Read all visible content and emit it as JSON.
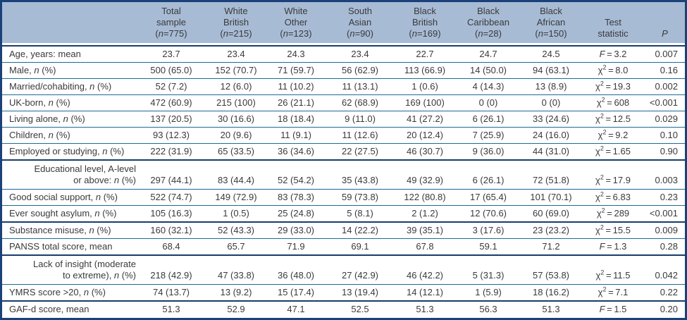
{
  "colors": {
    "header_bg": "#a7bbd5",
    "outer_border": "#1a4178",
    "rule_thin": "#1e6995",
    "rule_thick": "#173c6b",
    "text": "#3a3a3a"
  },
  "table": {
    "columns": [
      {
        "lines": [
          "Total",
          "sample",
          "(n=775)"
        ]
      },
      {
        "lines": [
          "White",
          "British",
          "(n=215)"
        ]
      },
      {
        "lines": [
          "White",
          "Other",
          "(n=123)"
        ]
      },
      {
        "lines": [
          "South",
          "Asian",
          "(n=90)"
        ]
      },
      {
        "lines": [
          "Black",
          "British",
          "(n=169)"
        ]
      },
      {
        "lines": [
          "Black",
          "Caribbean",
          "(n=28)"
        ]
      },
      {
        "lines": [
          "Black",
          "African",
          "(n=150)"
        ]
      },
      {
        "lines": [
          "Test",
          "statistic"
        ]
      },
      {
        "lines": [
          "P"
        ],
        "italic": true
      }
    ],
    "rows": [
      {
        "label": "Age, years: mean",
        "values": [
          "23.7",
          "23.4",
          "24.3",
          "23.4",
          "22.7",
          "24.7",
          "24.5"
        ],
        "stat": {
          "sym": "F",
          "val": "3.2"
        },
        "p": "0.007"
      },
      {
        "label": "Male, n (%)",
        "values": [
          "500 (65.0)",
          "152 (70.7)",
          "71 (59.7)",
          "56 (62.9)",
          "113 (66.9)",
          "14 (50.0)",
          "94 (63.1)"
        ],
        "stat": {
          "sym": "chi2",
          "val": "8.0"
        },
        "p": "0.16"
      },
      {
        "label": "Married/cohabiting, n (%)",
        "values": [
          "52 (7.2)",
          "12 (6.0)",
          "11 (10.2)",
          "11 (13.1)",
          "1 (0.6)",
          "4 (14.3)",
          "13 (8.9)"
        ],
        "stat": {
          "sym": "chi2",
          "val": "19.3"
        },
        "p": "0.002"
      },
      {
        "label": "UK-born, n (%)",
        "values": [
          "472 (60.9)",
          "215 (100)",
          "26 (21.1)",
          "62 (68.9)",
          "169 (100)",
          "0 (0)",
          "0 (0)"
        ],
        "stat": {
          "sym": "chi2",
          "val": "608"
        },
        "p": "<0.001"
      },
      {
        "label": "Living alone, n (%)",
        "values": [
          "137 (20.5)",
          "30 (16.6)",
          "18 (18.4)",
          "9 (11.0)",
          "41 (27.2)",
          "6 (26.1)",
          "33 (24.6)"
        ],
        "stat": {
          "sym": "chi2",
          "val": "12.5"
        },
        "p": "0.029"
      },
      {
        "label": "Children, n (%)",
        "values": [
          "93 (12.3)",
          "20 (9.6)",
          "11 (9.1)",
          "11 (12.6)",
          "20 (12.4)",
          "7 (25.9)",
          "24 (16.0)"
        ],
        "stat": {
          "sym": "chi2",
          "val": "9.2"
        },
        "p": "0.10"
      },
      {
        "label": "Employed or studying, n (%)",
        "values": [
          "222 (31.9)",
          "65 (33.5)",
          "36 (34.6)",
          "22 (27.5)",
          "46 (30.7)",
          "9 (36.0)",
          "44 (31.0)"
        ],
        "stat": {
          "sym": "chi2",
          "val": "1.65"
        },
        "p": "0.90"
      },
      {
        "label": "Educational level, A-level",
        "label2": "or above: n (%)",
        "thick_above": true,
        "values": [
          "297 (44.1)",
          "83 (44.4)",
          "52 (54.2)",
          "35 (43.8)",
          "49 (32.9)",
          "6 (26.1)",
          "72 (51.8)"
        ],
        "stat": {
          "sym": "chi2",
          "val": "17.9"
        },
        "p": "0.003"
      },
      {
        "label": "Good social support, n (%)",
        "values": [
          "522 (74.7)",
          "149 (72.9)",
          "83 (78.3)",
          "59 (73.8)",
          "122 (80.8)",
          "17 (65.4)",
          "101 (70.1)"
        ],
        "stat": {
          "sym": "chi2",
          "val": "6.83"
        },
        "p": "0.23"
      },
      {
        "label": "Ever sought asylum, n (%)",
        "values": [
          "105 (16.3)",
          "1 (0.5)",
          "25 (24.8)",
          "5 (8.1)",
          "2 (1.2)",
          "12 (70.6)",
          "60 (69.0)"
        ],
        "stat": {
          "sym": "chi2",
          "val": "289"
        },
        "p": "<0.001"
      },
      {
        "label": "Substance misuse, n (%)",
        "thick_above": true,
        "values": [
          "160 (32.1)",
          "52 (43.3)",
          "29 (33.0)",
          "14 (22.2)",
          "39 (35.1)",
          "3 (17.6)",
          "23 (23.2)"
        ],
        "stat": {
          "sym": "chi2",
          "val": "15.5"
        },
        "p": "0.009"
      },
      {
        "label": "PANSS total score, mean",
        "values": [
          "68.4",
          "65.7",
          "71.9",
          "69.1",
          "67.8",
          "59.1",
          "71.2"
        ],
        "stat": {
          "sym": "F",
          "val": "1.3"
        },
        "p": "0.28"
      },
      {
        "label": "Lack of insight (moderate",
        "label2": "to extreme), n (%)",
        "thick_above": true,
        "values": [
          "218 (42.9)",
          "47 (33.8)",
          "36 (48.0)",
          "27 (42.9)",
          "46 (42.2)",
          "5 (31.3)",
          "57 (53.8)"
        ],
        "stat": {
          "sym": "chi2",
          "val": "11.5"
        },
        "p": "0.042"
      },
      {
        "label": "YMRS score >20, n (%)",
        "values": [
          "74 (13.7)",
          "13 (9.2)",
          "15 (17.4)",
          "13 (19.4)",
          "14 (12.1)",
          "1 (5.9)",
          "18 (16.2)"
        ],
        "stat": {
          "sym": "chi2",
          "val": "7.1"
        },
        "p": "0.22"
      },
      {
        "label": "GAF-d score, mean",
        "thick_above": true,
        "values": [
          "51.3",
          "52.9",
          "47.1",
          "52.5",
          "51.3",
          "56.3",
          "51.3"
        ],
        "stat": {
          "sym": "F",
          "val": "1.5"
        },
        "p": "0.20"
      }
    ]
  }
}
